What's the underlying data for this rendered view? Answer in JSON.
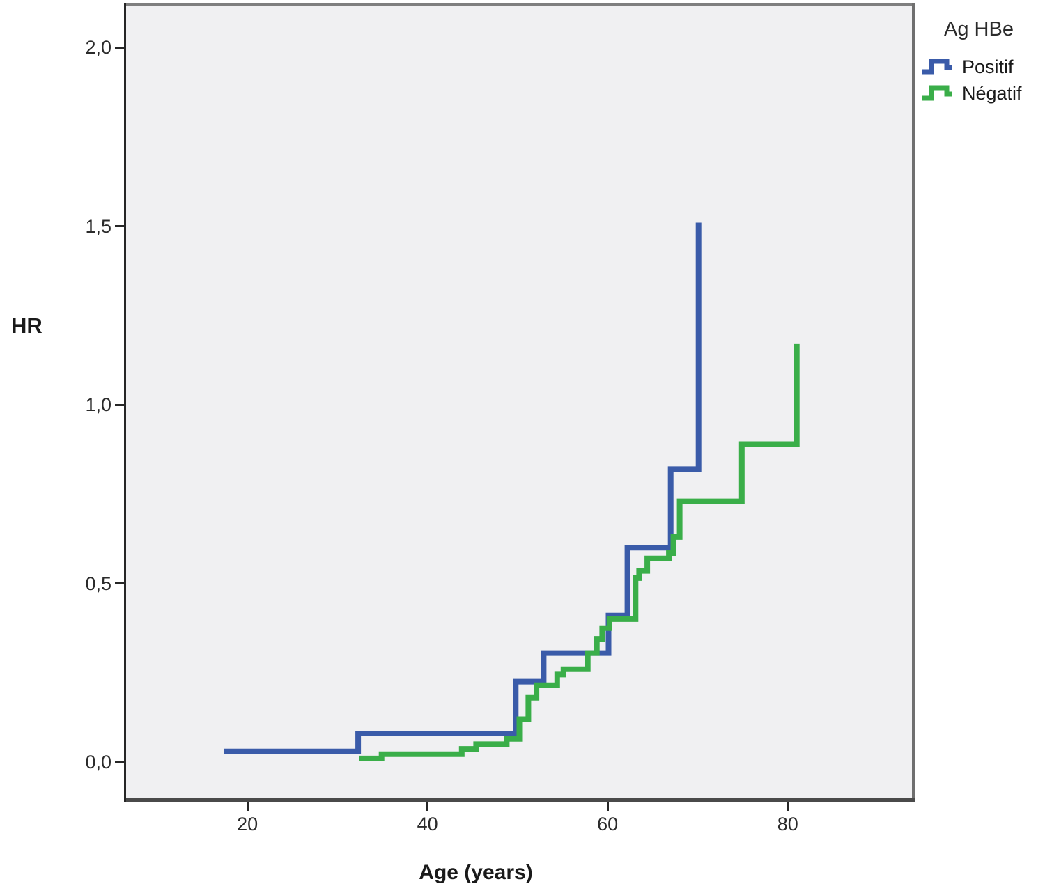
{
  "figure": {
    "background": "#ffffff",
    "panel_background": "#f0f0f2"
  },
  "chart_data": {
    "type": "line",
    "subtype": "step-function-cumulative-hazard",
    "title": "",
    "xlabel": "Age (years)",
    "ylabel": "HR",
    "grid": false,
    "legend_position": "top-right-outside",
    "line_width": 8,
    "axes": {
      "x": {
        "min": 6.3,
        "max": 94.1,
        "ticks": [
          {
            "v": 20,
            "label": "20"
          },
          {
            "v": 40,
            "label": "40"
          },
          {
            "v": 60,
            "label": "60"
          },
          {
            "v": 80,
            "label": "80"
          }
        ]
      },
      "y": {
        "min": -0.111,
        "max": 2.123,
        "ticks": [
          {
            "v": 0.0,
            "label": "0,0"
          },
          {
            "v": 0.5,
            "label": "0,5"
          },
          {
            "v": 1.0,
            "label": "1,0"
          },
          {
            "v": 1.5,
            "label": "1,5"
          },
          {
            "v": 2.0,
            "label": "2,0"
          }
        ]
      }
    },
    "series": [
      {
        "name": "Positif",
        "color": "#3a5ba9",
        "start": [
          17.4,
          0.03
        ],
        "steps": [
          [
            32.3,
            0.08
          ],
          [
            49.8,
            0.225
          ],
          [
            52.9,
            0.305
          ],
          [
            60.1,
            0.41
          ],
          [
            62.2,
            0.6
          ],
          [
            67.0,
            0.82
          ],
          [
            70.1,
            1.51
          ]
        ]
      },
      {
        "name": "Négatif",
        "color": "#3aae49",
        "start": [
          32.4,
          0.01
        ],
        "steps": [
          [
            34.9,
            0.022
          ],
          [
            43.8,
            0.037
          ],
          [
            45.4,
            0.05
          ],
          [
            48.8,
            0.065
          ],
          [
            50.2,
            0.12
          ],
          [
            51.2,
            0.18
          ],
          [
            52.1,
            0.215
          ],
          [
            54.4,
            0.245
          ],
          [
            55.1,
            0.26
          ],
          [
            57.8,
            0.305
          ],
          [
            58.8,
            0.345
          ],
          [
            59.4,
            0.375
          ],
          [
            60.2,
            0.4
          ],
          [
            63.1,
            0.515
          ],
          [
            63.5,
            0.535
          ],
          [
            64.4,
            0.57
          ],
          [
            66.8,
            0.585
          ],
          [
            67.3,
            0.63
          ],
          [
            68.0,
            0.73
          ],
          [
            74.9,
            0.89
          ],
          [
            81.0,
            1.17
          ]
        ]
      }
    ]
  },
  "legend": {
    "title": "Ag HBe",
    "items": [
      {
        "label": "Positif",
        "color": "#3a5ba9"
      },
      {
        "label": "Négatif",
        "color": "#3aae49"
      }
    ]
  }
}
